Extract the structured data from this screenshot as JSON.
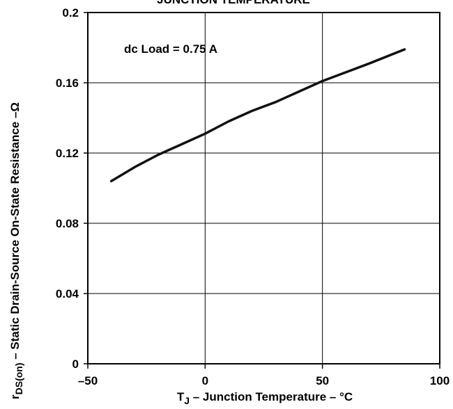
{
  "chart_data": {
    "type": "line",
    "title": "JUNCTION TEMPERATURE",
    "annotation": "dc Load = 0.75 A",
    "xlabel": {
      "prefix": "T",
      "subscript": "J",
      "suffix": " – Junction Temperature – °C"
    },
    "ylabel": {
      "prefix": "r",
      "subscript": "DS(on)",
      "suffix": " – Static Drain-Source On-State Resistance –Ω"
    },
    "xlim": [
      -50,
      100
    ],
    "ylim": [
      0,
      0.2
    ],
    "xticks": [
      {
        "value": -50,
        "label": "–50"
      },
      {
        "value": 0,
        "label": "0"
      },
      {
        "value": 50,
        "label": "50"
      },
      {
        "value": 100,
        "label": "100"
      }
    ],
    "yticks": [
      {
        "value": 0,
        "label": "0"
      },
      {
        "value": 0.04,
        "label": "0.04"
      },
      {
        "value": 0.08,
        "label": "0.08"
      },
      {
        "value": 0.12,
        "label": "0.12"
      },
      {
        "value": 0.16,
        "label": "0.16"
      },
      {
        "value": 0.2,
        "label": "0.2"
      }
    ],
    "grid": true,
    "series": [
      {
        "color": "#111111",
        "points": [
          {
            "x": -40,
            "y": 0.104
          },
          {
            "x": -30,
            "y": 0.112
          },
          {
            "x": -20,
            "y": 0.119
          },
          {
            "x": -10,
            "y": 0.125
          },
          {
            "x": 0,
            "y": 0.131
          },
          {
            "x": 10,
            "y": 0.138
          },
          {
            "x": 20,
            "y": 0.144
          },
          {
            "x": 30,
            "y": 0.149
          },
          {
            "x": 40,
            "y": 0.155
          },
          {
            "x": 50,
            "y": 0.161
          },
          {
            "x": 60,
            "y": 0.166
          },
          {
            "x": 70,
            "y": 0.171
          },
          {
            "x": 85,
            "y": 0.179
          }
        ]
      }
    ]
  }
}
